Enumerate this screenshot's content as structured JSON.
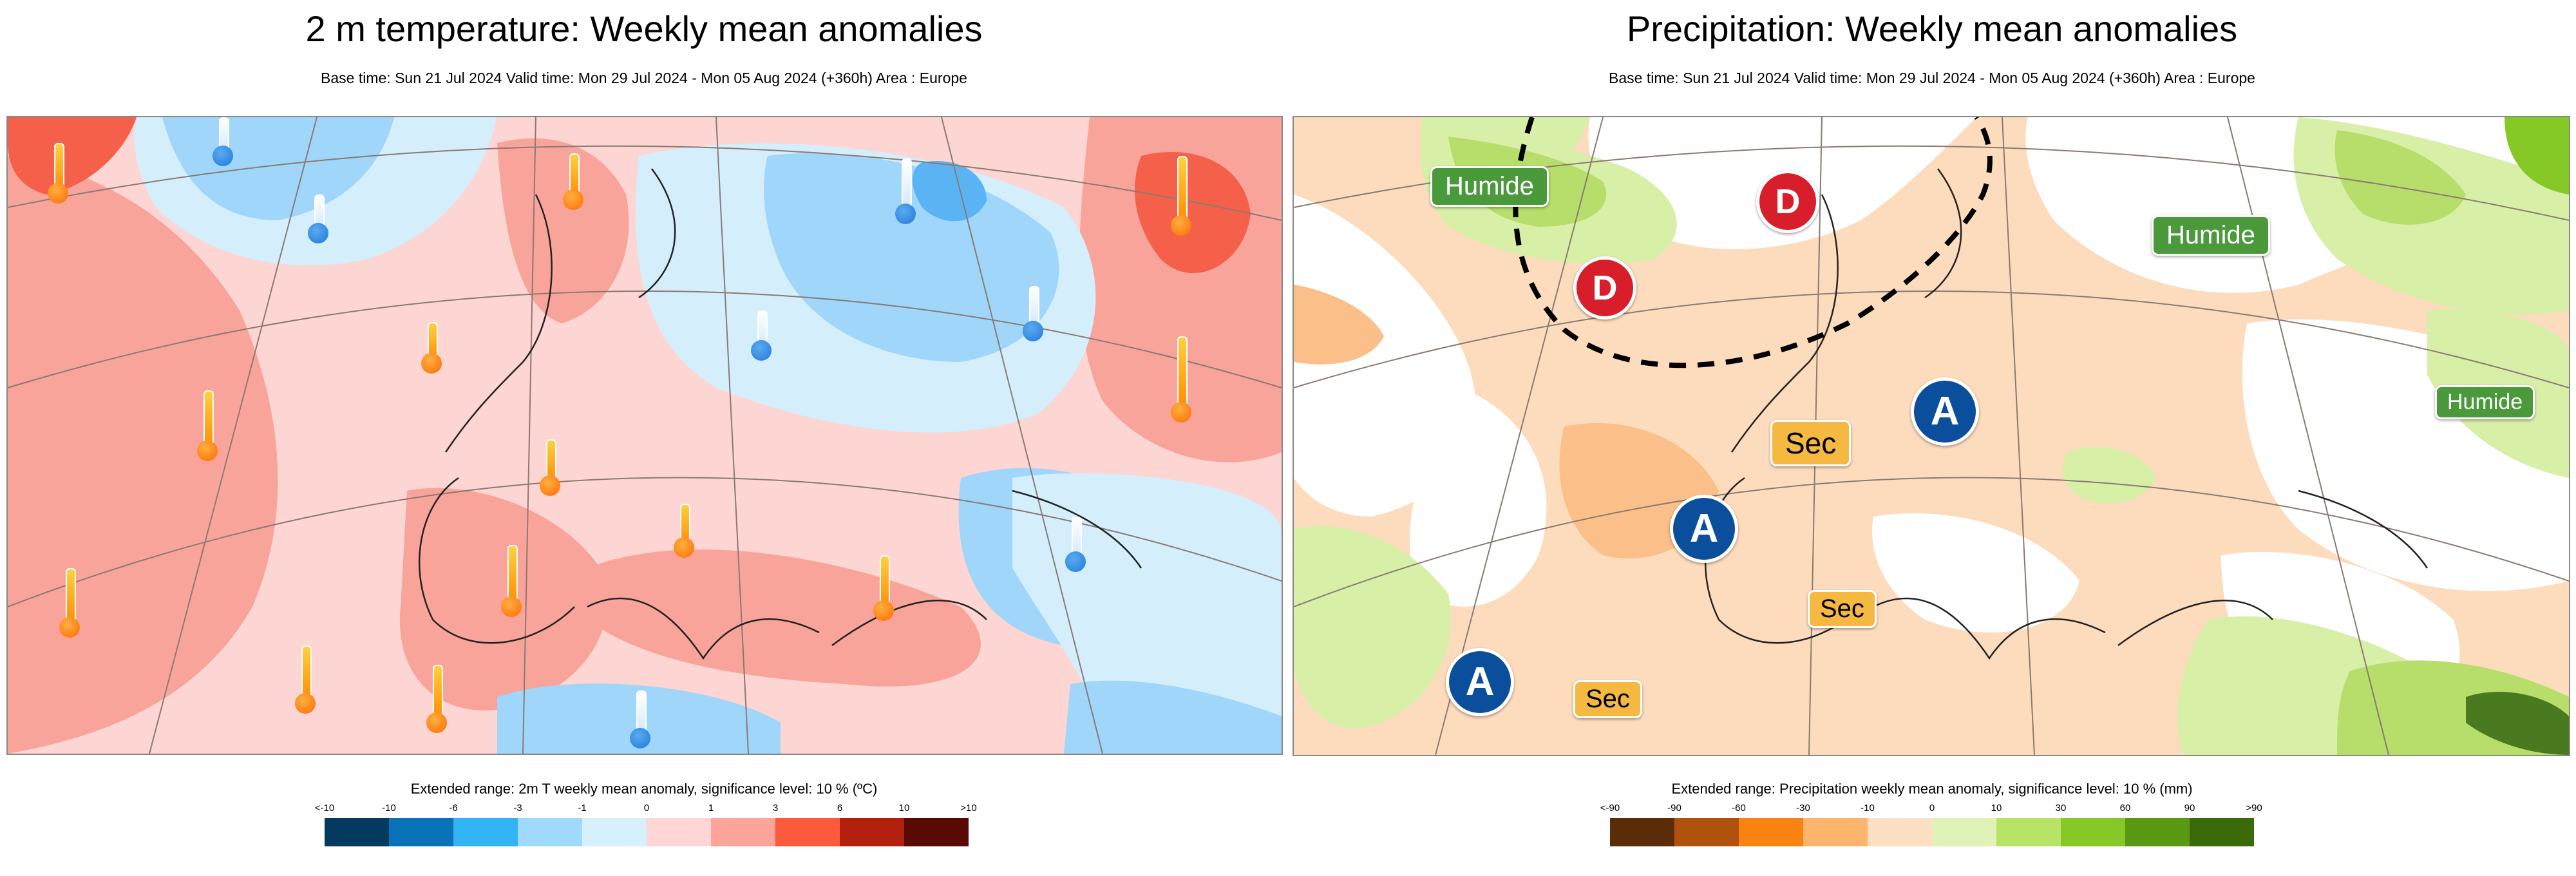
{
  "left_panel": {
    "title": "2 m temperature: Weekly mean anomalies",
    "subtitle": "Base time: Sun 21 Jul 2024 Valid time: Mon 29 Jul 2024 - Mon 05 Aug 2024 (+360h) Area : Europe",
    "legend_title": "Extended range: 2m T weekly mean anomaly, significance level: 10 % (ºC)",
    "legend_ticks": [
      "<-10",
      "-10",
      "-6",
      "-3",
      "-1",
      "0",
      "1",
      "3",
      "6",
      "10",
      ">10"
    ],
    "legend_colors": [
      "#043a5e",
      "#0a72b8",
      "#31b3f5",
      "#9fd9fb",
      "#d6f0fc",
      "#ffd6d6",
      "#fca39a",
      "#fb5a3d",
      "#b3200e",
      "#5a0a05"
    ],
    "map_colors": {
      "warm_light": "#fdd5d2",
      "warm_mid": "#f9a49b",
      "warm_strong": "#f5604a",
      "cold_light": "#d4eefc",
      "cold_mid": "#9fd6fa",
      "cold_strong": "#5ab4f3"
    },
    "icons": [
      "thermometer-warm-icon",
      "thermometer-cold-icon"
    ]
  },
  "right_panel": {
    "title": "Precipitation: Weekly mean anomalies",
    "subtitle": "Base time: Sun 21 Jul 2024 Valid time: Mon 29 Jul 2024 - Mon 05 Aug 2024 (+360h) Area : Europe",
    "legend_title": "Extended range: Precipitation weekly mean anomaly, significance level: 10 % (mm)",
    "legend_ticks": [
      "<-90",
      "-90",
      "-60",
      "-30",
      "-10",
      "0",
      "10",
      "30",
      "60",
      "90",
      ">90"
    ],
    "legend_colors": [
      "#5a2c08",
      "#b0520e",
      "#f98310",
      "#fdb56e",
      "#fde0c3",
      "#e0f2b8",
      "#b8e466",
      "#86c926",
      "#5a9a12",
      "#3a6a0a"
    ],
    "map_colors": {
      "dry_light": "#fddcbe",
      "dry_mid": "#fbbf8a",
      "wet_light": "#d8efa8",
      "wet_mid": "#b7dd6a",
      "wet_strong": "#4a7a20"
    },
    "labels": {
      "humide": "Humide",
      "sec": "Sec",
      "high": "A",
      "low": "D"
    }
  }
}
